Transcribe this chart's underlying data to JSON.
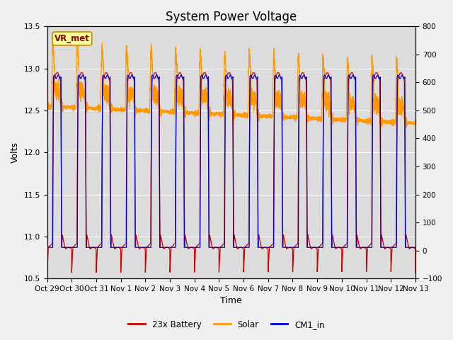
{
  "title": "System Power Voltage",
  "xlabel": "Time",
  "ylabel": "Volts",
  "xlim": [
    0,
    15
  ],
  "ylim_left": [
    10.5,
    13.5
  ],
  "ylim_right": [
    -100,
    800
  ],
  "yticks_left": [
    10.5,
    11.0,
    11.5,
    12.0,
    12.5,
    13.0,
    13.5
  ],
  "yticks_right": [
    -100,
    0,
    100,
    200,
    300,
    400,
    500,
    600,
    700,
    800
  ],
  "xtick_labels": [
    "Oct 29",
    "Oct 30",
    "Oct 31",
    "Nov 1",
    "Nov 2",
    "Nov 3",
    "Nov 4",
    "Nov 5",
    "Nov 6",
    "Nov 7",
    "Nov 8",
    "Nov 9",
    "Nov 10",
    "Nov 11",
    "Nov 12",
    "Nov 13"
  ],
  "xtick_positions": [
    0,
    1,
    2,
    3,
    4,
    5,
    6,
    7,
    8,
    9,
    10,
    11,
    12,
    13,
    14,
    15
  ],
  "legend_labels": [
    "23x Battery",
    "Solar",
    "CM1_in"
  ],
  "legend_colors": [
    "#cc0000",
    "#ff9900",
    "#0000cc"
  ],
  "annotation_text": "VR_met",
  "annotation_box_facecolor": "#ffff99",
  "annotation_box_edgecolor": "#cc8800",
  "annotation_text_color": "#880000",
  "fig_facecolor": "#f0f0f0",
  "ax_facecolor": "#dcdcdc",
  "grid_color": "#ffffff",
  "title_fontsize": 12,
  "label_fontsize": 9,
  "tick_fontsize": 7.5
}
